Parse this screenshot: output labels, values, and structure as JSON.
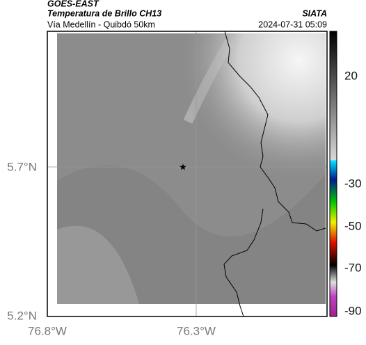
{
  "header": {
    "satellite": "GOES-EAST",
    "product": "Temperatura de Brillo CH13",
    "region": "Vía Medellín - Quibdó 50km",
    "source": "SIATA",
    "datetime": "2024-07-31 05:09"
  },
  "axes": {
    "y_labels": [
      "5.7°N",
      "5.2°N"
    ],
    "x_labels": [
      "76.8°W",
      "76.3°W"
    ]
  },
  "colorbar": {
    "labels": [
      "20",
      "-30",
      "-50",
      "-70",
      "-90"
    ]
  }
}
